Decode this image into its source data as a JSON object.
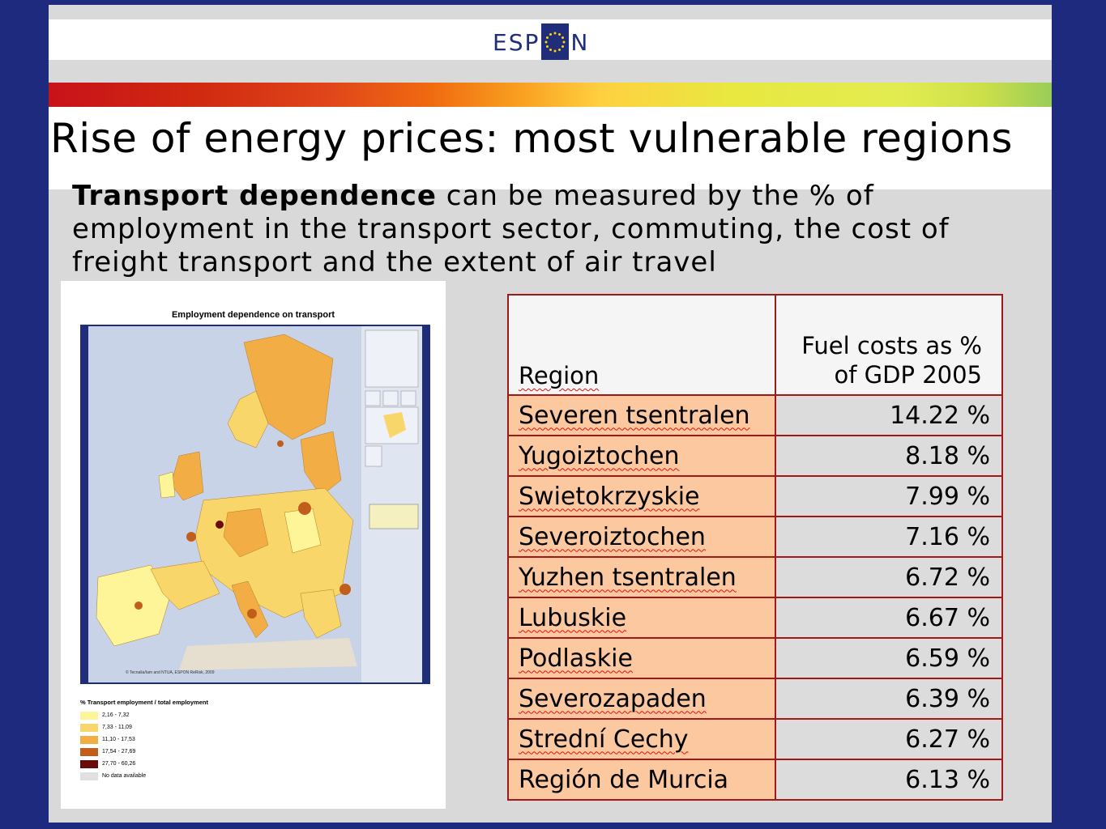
{
  "brand": {
    "logo_left": "ESP",
    "logo_right": "N"
  },
  "slide": {
    "title": "Rise of energy prices: most vulnerable regions",
    "intro_bold": "Transport dependence",
    "intro_rest": " can be measured by the % of employment in the transport sector, commuting, the cost of freight transport and the extent of air travel"
  },
  "map": {
    "title": "Employment dependence on transport",
    "legend_title": "% Transport employment / total employment",
    "legend_items": [
      {
        "label": "2,16 - 7,32",
        "color": "#fdf597"
      },
      {
        "label": "7,33 - 11,09",
        "color": "#f8d66a"
      },
      {
        "label": "11,10 - 17,53",
        "color": "#f2ae45"
      },
      {
        "label": "17,54 - 27,69",
        "color": "#c25e1b"
      },
      {
        "label": "27,70 - 60,26",
        "color": "#6a0b0b"
      },
      {
        "label": "No data available",
        "color": "#e0e0e0"
      }
    ],
    "credit": "© Tecnalia/Iam and NTUA, ESPON ReRisk, 2009"
  },
  "table": {
    "header_region": "Region",
    "header_value_line1": "Fuel costs as %",
    "header_value_line2": "of GDP 2005",
    "rows": [
      {
        "region": "Severen tsentralen",
        "value": "14.22 %"
      },
      {
        "region": "Yugoiztochen",
        "value": "8.18 %"
      },
      {
        "region": "Swietokrzyskie",
        "value": "7.99 %"
      },
      {
        "region": "Severoiztochen",
        "value": "7.16 %"
      },
      {
        "region": "Yuzhen tsentralen",
        "value": "6.72 %"
      },
      {
        "region": "Lubuskie",
        "value": "6.67 %"
      },
      {
        "region": "Podlaskie",
        "value": "6.59 %"
      },
      {
        "region": "Severozapaden",
        "value": "6.39 %"
      },
      {
        "region": "Strední Cechy",
        "value": "6.27 %"
      },
      {
        "region": "Región de Murcia",
        "value": "6.13 %"
      }
    ]
  },
  "colors": {
    "frame": "#1e2a7e",
    "table_border": "#a01818",
    "region_cell": "#fbc8a0",
    "value_cell": "#dcdcdc"
  }
}
